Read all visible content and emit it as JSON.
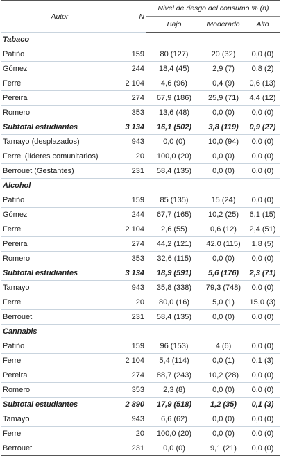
{
  "header": {
    "author": "Autor",
    "n": "N",
    "group": "Nivel de riesgo del consumo % (n)",
    "levels": [
      "Bajo",
      "Moderado",
      "Alto"
    ]
  },
  "sections": [
    {
      "title": "Tabaco",
      "rows": [
        [
          "Patiño",
          "159",
          "80 (127)",
          "20 (32)",
          "0,0 (0)"
        ],
        [
          "Gómez",
          "244",
          "18,4 (45)",
          "2,9 (7)",
          "0,8 (2)"
        ],
        [
          "Ferrel",
          "2 104",
          "4,6 (96)",
          "0,4 (9)",
          "0,6 (13)"
        ],
        [
          "Pereira",
          "274",
          "67,9 (186)",
          "25,9 (71)",
          "4,4 (12)"
        ],
        [
          "Romero",
          "353",
          "13,6 (48)",
          "0,0 (0)",
          "0,0 (0)"
        ]
      ],
      "subtotal": [
        "Subtotal estudiantes",
        "3 134",
        "16,1 (502)",
        "3,8 (119)",
        "0,9 (27)"
      ],
      "more_rows": [
        [
          "Tamayo (desplazados)",
          "943",
          "0,0 (0)",
          "10,0 (94)",
          "0,0 (0)"
        ],
        [
          "Ferrel (líderes comunitarios)",
          "20",
          "100,0 (20)",
          "0,0 (0)",
          "0,0 (0)"
        ],
        [
          "Berrouet (Gestantes)",
          "231",
          "58,4 (135)",
          "0,0 (0)",
          "0,0 (0)"
        ]
      ]
    },
    {
      "title": "Alcohol",
      "rows": [
        [
          "Patiño",
          "159",
          "85 (135)",
          "15 (24)",
          "0,0 (0)"
        ],
        [
          "Gómez",
          "244",
          "67,7 (165)",
          "10,2 (25)",
          "6,1 (15)"
        ],
        [
          "Ferrel",
          "2 104",
          "2,6 (55)",
          "0,6 (12)",
          "2,4 (51)"
        ],
        [
          "Pereira",
          "274",
          "44,2 (121)",
          "42,0 (115)",
          "1,8 (5)"
        ],
        [
          "Romero",
          "353",
          "32,6 (115)",
          "0,0 (0)",
          "0,0 (0)"
        ]
      ],
      "subtotal": [
        "Subtotal estudiantes",
        "3 134",
        "18,9 (591)",
        "5,6 (176)",
        "2,3 (71)"
      ],
      "more_rows": [
        [
          "Tamayo",
          "943",
          "35,8 (338)",
          "79,3 (748)",
          "0,0 (0)"
        ],
        [
          "Ferrel",
          "20",
          "80,0 (16)",
          "5,0 (1)",
          "15,0 (3)"
        ],
        [
          "Berrouet",
          "231",
          "58,4 (135)",
          "0,0 (0)",
          "0,0 (0)"
        ]
      ]
    },
    {
      "title": "Cannabis",
      "rows": [
        [
          "Patiño",
          "159",
          "96 (153)",
          "4 (6)",
          "0,0 (0)"
        ],
        [
          "Ferrel",
          "2 104",
          "5,4 (114)",
          "0,0 (1)",
          "0,1 (3)"
        ],
        [
          "Pereira",
          "274",
          "88,7 (243)",
          "10,2 (28)",
          "0,0 (0)"
        ],
        [
          "Romero",
          "353",
          "2,3 (8)",
          "0,0 (0)",
          "0,0 (0)"
        ]
      ],
      "subtotal": [
        "Subtotal estudiantes",
        "2 890",
        "17,9 (518)",
        "1,2 (35)",
        "0,1 (3)"
      ],
      "more_rows": [
        [
          "Tamayo",
          "943",
          "6,6 (62)",
          "0,0 (0)",
          "0,0 (0)"
        ],
        [
          "Ferrel",
          "20",
          "100,0 (20)",
          "0,0 (0)",
          "0,0 (0)"
        ],
        [
          "Berrouet",
          "231",
          "0,0 (0)",
          "9,1 (21)",
          "0,0 (0)"
        ]
      ]
    }
  ]
}
